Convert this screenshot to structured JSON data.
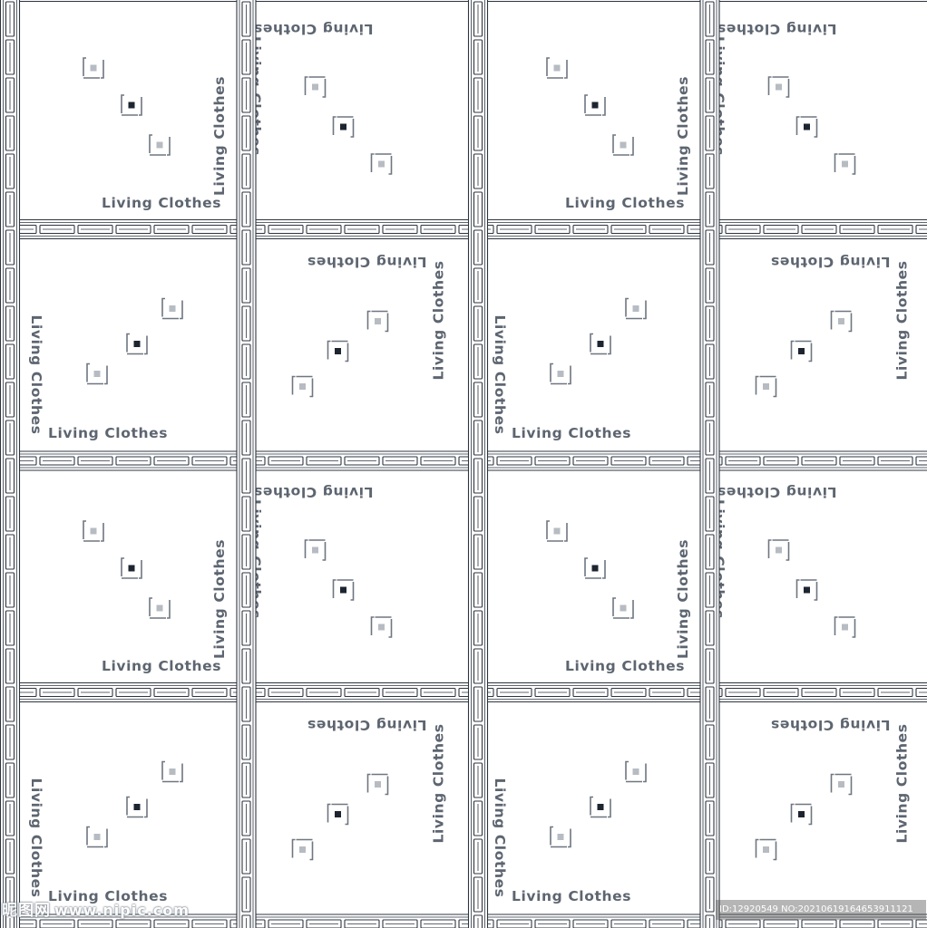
{
  "pattern": {
    "label_text": "Living Clothes",
    "rows": 4,
    "cols": 4,
    "colors": {
      "background": "#ffffff",
      "border_line": "#2e3540",
      "label": "#5d6570",
      "light_square": "#b7bcc3",
      "dark_square": "#1d2530"
    }
  },
  "watermark": {
    "logo_text": "昵图网",
    "site_text": "www.nipic.com",
    "id_text": "ID:12920549 NO:20210619164653911121"
  }
}
